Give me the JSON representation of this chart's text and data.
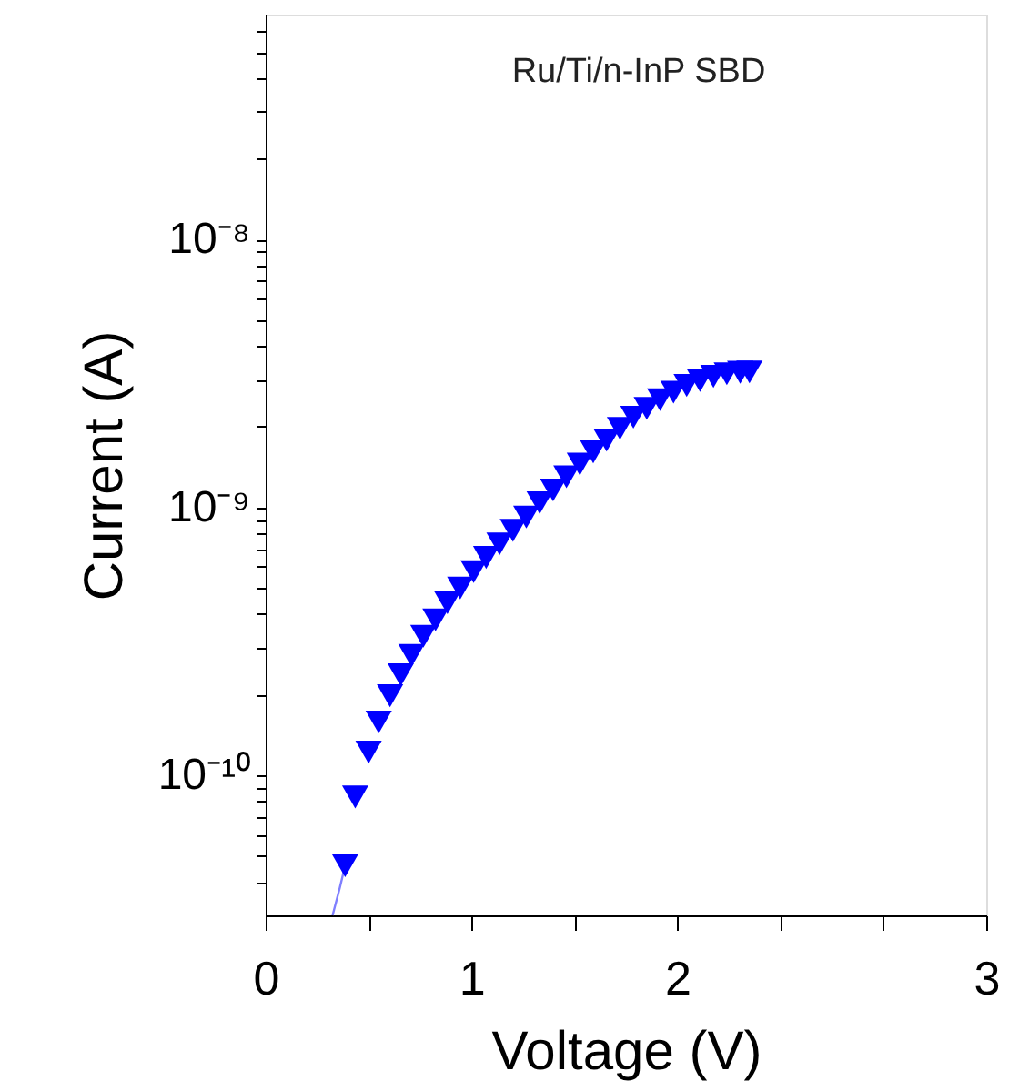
{
  "chart_data": {
    "type": "scatter",
    "xlabel": "Voltage (V)",
    "ylabel": "Current (A)",
    "log": "y",
    "grid": false,
    "annotations": [
      "Ru/Ti/n-InP SBD"
    ],
    "xlim": [
      0,
      3.5
    ],
    "ylim": [
      3e-11,
      6.9e-08
    ],
    "xticks": [
      0,
      {
        "value": 0.5,
        "label": null
      },
      1,
      {
        "value": 1.5,
        "label": null
      },
      2,
      {
        "value": 2.5,
        "label": null
      },
      {
        "value": 3.0,
        "label": null
      },
      {
        "value": 3.5,
        "label": "3"
      }
    ],
    "yticks": [
      {
        "value": 4e-11,
        "label": null
      },
      {
        "value": 5e-11,
        "label": null
      },
      {
        "value": 6e-11,
        "label": null
      },
      {
        "value": 7e-11,
        "label": null
      },
      {
        "value": 8e-11,
        "label": null
      },
      {
        "value": 9e-11,
        "label": null
      },
      {
        "value": 1e-10,
        "label": "10⁻¹⁰"
      },
      {
        "value": 2e-10,
        "label": null
      },
      {
        "value": 3e-10,
        "label": null
      },
      {
        "value": 4e-10,
        "label": null
      },
      {
        "value": 5e-10,
        "label": null
      },
      {
        "value": 6e-10,
        "label": null
      },
      {
        "value": 7e-10,
        "label": null
      },
      {
        "value": 8e-10,
        "label": null
      },
      {
        "value": 9e-10,
        "label": null
      },
      {
        "value": 1e-09,
        "label": "10⁻⁹"
      },
      {
        "value": 2e-09,
        "label": null
      },
      {
        "value": 3e-09,
        "label": null
      },
      {
        "value": 4e-09,
        "label": null
      },
      {
        "value": 5e-09,
        "label": null
      },
      {
        "value": 6e-09,
        "label": null
      },
      {
        "value": 7e-09,
        "label": null
      },
      {
        "value": 8e-09,
        "label": null
      },
      {
        "value": 9e-09,
        "label": null
      },
      {
        "value": 1e-08,
        "label": "10⁻⁸"
      },
      {
        "value": 2e-08,
        "label": null
      },
      {
        "value": 3e-08,
        "label": null
      },
      {
        "value": 4e-08,
        "label": null
      },
      {
        "value": 5e-08,
        "label": null
      },
      {
        "value": 6e-08,
        "label": null
      }
    ],
    "series": [
      {
        "type": "line",
        "color": "#7f7fff",
        "x": [
          0.325,
          0.36,
          0.386
        ],
        "values": [
          3e-11,
          3.8e-11,
          4.6e-11
        ]
      },
      {
        "marker": "triangle",
        "color": "#0000ff",
        "x": [
          0.386,
          0.435,
          0.5,
          0.549,
          0.604,
          0.656,
          0.708,
          0.766,
          0.825,
          0.883,
          0.945,
          1.01,
          1.071,
          1.136,
          1.201,
          1.266,
          1.331,
          1.396,
          1.461,
          1.526,
          1.591,
          1.656,
          1.721,
          1.786,
          1.851,
          1.916,
          1.981,
          2.045,
          2.11,
          2.175,
          2.24,
          2.305,
          2.35
        ],
        "values": [
          4.6e-11,
          8.3e-11,
          1.22e-10,
          1.58e-10,
          1.98e-10,
          2.37e-10,
          2.8e-10,
          3.3e-10,
          3.8e-10,
          4.4e-10,
          5e-10,
          5.75e-10,
          6.5e-10,
          7.3e-10,
          8.2e-10,
          9.2e-10,
          1.04e-09,
          1.16e-09,
          1.3e-09,
          1.45e-09,
          1.61e-09,
          1.78e-09,
          1.97e-09,
          2.17e-09,
          2.34e-09,
          2.52e-09,
          2.69e-09,
          2.85e-09,
          2.97e-09,
          3.08e-09,
          3.15e-09,
          3.19e-09,
          3.2e-09
        ]
      }
    ]
  }
}
